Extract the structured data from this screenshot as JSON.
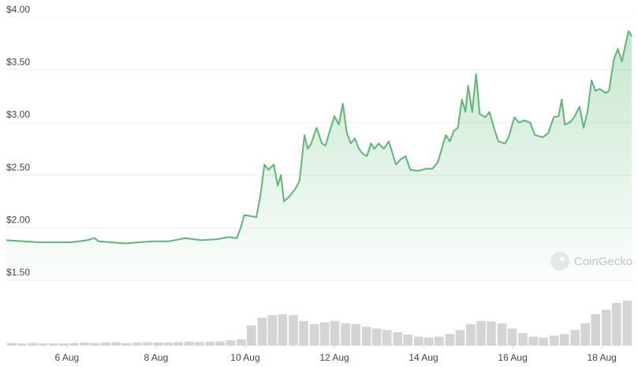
{
  "chart_data": [
    {
      "type": "area",
      "color": "#5cb874",
      "grid": true,
      "watermark": "CoinGecko",
      "xlim": [
        4.64,
        18.67
      ],
      "ylim": [
        1.5,
        4.0
      ],
      "yticks": [
        {
          "value": 1.5,
          "label": "$1.50"
        },
        {
          "value": 2.0,
          "label": "$2.00"
        },
        {
          "value": 2.5,
          "label": "$2.50"
        },
        {
          "value": 3.0,
          "label": "$3.00"
        },
        {
          "value": 3.5,
          "label": "$3.50"
        },
        {
          "value": 4.0,
          "label": "$4.00"
        }
      ],
      "x": [
        4.64,
        5.03,
        5.38,
        5.74,
        6.09,
        6.45,
        6.62,
        6.71,
        6.98,
        7.33,
        7.6,
        7.95,
        8.3,
        8.66,
        9.01,
        9.37,
        9.63,
        9.81,
        9.9,
        9.98,
        10.25,
        10.34,
        10.43,
        10.52,
        10.64,
        10.73,
        10.8,
        10.87,
        11.0,
        11.14,
        11.22,
        11.33,
        11.4,
        11.48,
        11.6,
        11.72,
        11.8,
        11.92,
        12.0,
        12.1,
        12.19,
        12.28,
        12.37,
        12.46,
        12.55,
        12.64,
        12.73,
        12.82,
        12.9,
        12.99,
        13.11,
        13.22,
        13.31,
        13.38,
        13.49,
        13.6,
        13.7,
        13.88,
        14.06,
        14.2,
        14.32,
        14.41,
        14.5,
        14.59,
        14.68,
        14.77,
        14.86,
        14.94,
        15.0,
        15.09,
        15.18,
        15.26,
        15.39,
        15.48,
        15.58,
        15.68,
        15.83,
        15.91,
        16.04,
        16.14,
        16.27,
        16.39,
        16.5,
        16.68,
        16.8,
        16.92,
        17.03,
        17.1,
        17.17,
        17.28,
        17.38,
        17.5,
        17.59,
        17.68,
        17.77,
        17.86,
        17.95,
        18.09,
        18.16,
        18.27,
        18.36,
        18.45,
        18.52,
        18.6,
        18.67
      ],
      "values": [
        1.88,
        1.87,
        1.86,
        1.86,
        1.86,
        1.88,
        1.9,
        1.87,
        1.86,
        1.85,
        1.86,
        1.87,
        1.87,
        1.9,
        1.88,
        1.89,
        1.91,
        1.9,
        2.0,
        2.12,
        2.1,
        2.3,
        2.6,
        2.55,
        2.6,
        2.4,
        2.5,
        2.25,
        2.3,
        2.38,
        2.45,
        2.88,
        2.75,
        2.8,
        2.95,
        2.8,
        2.78,
        2.95,
        3.06,
        2.98,
        3.18,
        2.9,
        2.8,
        2.85,
        2.75,
        2.7,
        2.68,
        2.8,
        2.75,
        2.8,
        2.75,
        2.82,
        2.7,
        2.6,
        2.65,
        2.68,
        2.55,
        2.54,
        2.56,
        2.56,
        2.62,
        2.75,
        2.88,
        2.82,
        2.92,
        2.95,
        3.22,
        3.1,
        3.35,
        3.1,
        3.46,
        3.08,
        3.05,
        3.1,
        2.95,
        2.82,
        2.8,
        2.86,
        3.05,
        3.0,
        3.02,
        3.0,
        2.88,
        2.86,
        2.9,
        3.05,
        3.06,
        3.22,
        2.98,
        3.0,
        3.05,
        3.15,
        2.95,
        3.1,
        3.4,
        3.3,
        3.32,
        3.28,
        3.3,
        3.6,
        3.7,
        3.58,
        3.72,
        3.87,
        3.82
      ]
    },
    {
      "type": "bar",
      "color": "#d4d4d4",
      "xlim": [
        4.64,
        18.67
      ],
      "ylim": [
        0,
        100
      ],
      "xticks": [
        {
          "value": 6,
          "label": "6 Aug"
        },
        {
          "value": 8,
          "label": "8 Aug"
        },
        {
          "value": 10,
          "label": "10 Aug"
        },
        {
          "value": 12,
          "label": "12 Aug"
        },
        {
          "value": 14,
          "label": "14 Aug"
        },
        {
          "value": 16,
          "label": "16 Aug"
        },
        {
          "value": 18,
          "label": "18 Aug"
        }
      ],
      "x": [
        4.76,
        4.99,
        5.23,
        5.46,
        5.7,
        5.93,
        6.16,
        6.4,
        6.63,
        6.87,
        7.1,
        7.33,
        7.57,
        7.8,
        8.04,
        8.27,
        8.5,
        8.74,
        8.97,
        9.21,
        9.44,
        9.67,
        9.91,
        10.14,
        10.38,
        10.61,
        10.84,
        11.08,
        11.31,
        11.55,
        11.78,
        12.01,
        12.25,
        12.48,
        12.72,
        12.95,
        13.18,
        13.42,
        13.65,
        13.89,
        14.12,
        14.35,
        14.59,
        14.82,
        15.06,
        15.29,
        15.52,
        15.76,
        15.99,
        16.23,
        16.46,
        16.69,
        16.93,
        17.16,
        17.4,
        17.63,
        17.86,
        18.1,
        18.33,
        18.57
      ],
      "values": [
        6,
        5,
        6,
        5,
        5,
        5,
        6,
        7,
        6,
        7,
        8,
        6,
        7,
        8,
        7,
        7,
        8,
        9,
        8,
        9,
        10,
        12,
        14,
        45,
        62,
        68,
        70,
        68,
        55,
        48,
        52,
        55,
        50,
        48,
        42,
        38,
        35,
        30,
        25,
        20,
        18,
        20,
        26,
        35,
        48,
        55,
        54,
        50,
        38,
        28,
        20,
        18,
        22,
        26,
        35,
        50,
        70,
        80,
        95,
        100
      ]
    }
  ]
}
